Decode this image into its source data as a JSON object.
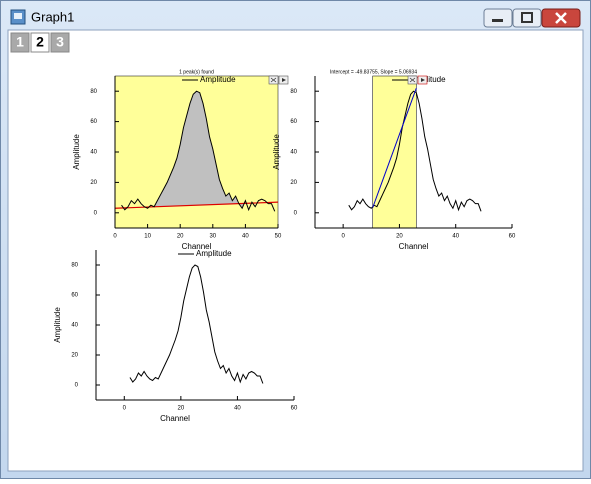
{
  "window": {
    "title": "Graph1",
    "tabs": [
      "1",
      "2",
      "3"
    ]
  },
  "chart_data": [
    {
      "type": "line",
      "annotation": "1 peak(s) found",
      "x_label": "Channel",
      "y_label": "Amplitude",
      "legend": "top",
      "background": "#ffff99",
      "x": [
        2,
        3,
        4,
        5,
        6,
        7,
        8,
        9,
        10,
        11,
        12,
        13,
        14,
        15,
        16,
        17,
        18,
        19,
        20,
        21,
        22,
        23,
        24,
        25,
        26,
        27,
        28,
        29,
        30,
        31,
        32,
        33,
        34,
        35,
        36,
        37,
        38,
        39,
        40,
        41,
        42,
        43,
        44,
        45,
        46,
        47,
        48,
        49
      ],
      "series": [
        {
          "name": "Amplitude",
          "color": "#000000",
          "values": [
            5,
            2,
            4,
            8,
            6,
            9,
            6,
            4,
            3,
            5,
            4,
            8,
            12,
            16,
            20,
            25,
            30,
            36,
            45,
            56,
            64,
            72,
            78,
            80,
            79,
            72,
            62,
            50,
            42,
            32,
            22,
            16,
            11,
            13,
            8,
            11,
            6,
            3,
            8,
            2,
            7,
            4,
            8,
            9,
            8,
            6,
            6,
            1
          ]
        }
      ],
      "baseline": {
        "color": "#dd0000",
        "x": [
          0,
          50
        ],
        "values": [
          3,
          7
        ]
      },
      "fill": {
        "color": "#c0c0c0",
        "from": 12,
        "to": 40
      },
      "xlim": [
        0,
        50
      ],
      "xticks": [
        0,
        10,
        20,
        30,
        40,
        50
      ],
      "ylim": [
        -10,
        90
      ],
      "yticks": [
        0,
        20,
        40,
        60,
        80
      ]
    },
    {
      "type": "line",
      "annotation": "Intercept = -49.83755, Slope = 5.06934",
      "x_label": "Channel",
      "y_label": "Amplitude",
      "legend": "top",
      "x": [
        2,
        3,
        4,
        5,
        6,
        7,
        8,
        9,
        10,
        11,
        12,
        13,
        14,
        15,
        16,
        17,
        18,
        19,
        20,
        21,
        22,
        23,
        24,
        25,
        26,
        27,
        28,
        29,
        30,
        31,
        32,
        33,
        34,
        35,
        36,
        37,
        38,
        39,
        40,
        41,
        42,
        43,
        44,
        45,
        46,
        47,
        48,
        49
      ],
      "series": [
        {
          "name": "Amplitude",
          "color": "#000000",
          "values": [
            5,
            2,
            4,
            8,
            6,
            9,
            6,
            4,
            3,
            5,
            4,
            8,
            12,
            16,
            20,
            25,
            30,
            36,
            45,
            56,
            64,
            72,
            78,
            80,
            79,
            72,
            62,
            50,
            42,
            32,
            22,
            16,
            11,
            13,
            8,
            11,
            6,
            3,
            8,
            2,
            7,
            4,
            8,
            9,
            8,
            6,
            6,
            1
          ]
        }
      ],
      "highlight": {
        "color": "#ffff99",
        "from": 10.5,
        "to": 26
      },
      "fit": {
        "color": "#0000cc",
        "x": [
          10.5,
          26
        ],
        "values": [
          3.4,
          82
        ]
      },
      "xlim": [
        -10,
        60
      ],
      "xticks": [
        0,
        20,
        40,
        60
      ],
      "ylim": [
        -10,
        90
      ],
      "yticks": [
        0,
        20,
        40,
        60,
        80
      ]
    },
    {
      "type": "line",
      "x_label": "Channel",
      "y_label": "Amplitude",
      "legend": "top",
      "x": [
        2,
        3,
        4,
        5,
        6,
        7,
        8,
        9,
        10,
        11,
        12,
        13,
        14,
        15,
        16,
        17,
        18,
        19,
        20,
        21,
        22,
        23,
        24,
        25,
        26,
        27,
        28,
        29,
        30,
        31,
        32,
        33,
        34,
        35,
        36,
        37,
        38,
        39,
        40,
        41,
        42,
        43,
        44,
        45,
        46,
        47,
        48,
        49
      ],
      "series": [
        {
          "name": "Amplitude",
          "color": "#000000",
          "values": [
            5,
            2,
            4,
            8,
            6,
            9,
            6,
            4,
            3,
            5,
            4,
            8,
            12,
            16,
            20,
            25,
            30,
            36,
            45,
            56,
            64,
            72,
            78,
            80,
            79,
            72,
            62,
            50,
            42,
            32,
            22,
            16,
            11,
            13,
            8,
            11,
            6,
            3,
            8,
            2,
            7,
            4,
            8,
            9,
            8,
            6,
            6,
            1
          ]
        }
      ],
      "xlim": [
        -10,
        60
      ],
      "xticks": [
        0,
        20,
        40,
        60
      ],
      "ylim": [
        -10,
        90
      ],
      "yticks": [
        0,
        20,
        40,
        60,
        80
      ]
    }
  ]
}
